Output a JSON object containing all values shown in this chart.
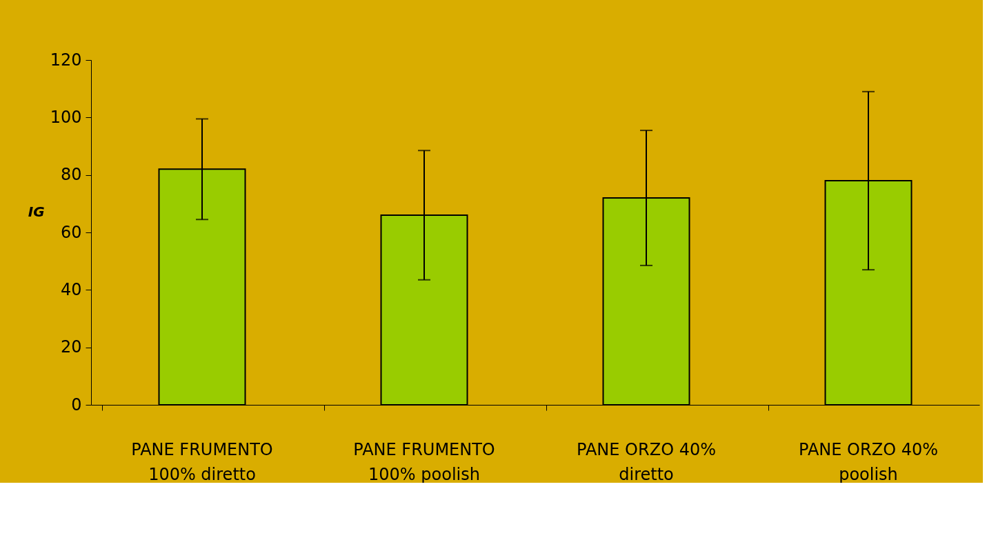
{
  "chart_data": {
    "type": "bar",
    "ylabel": "IG",
    "categories": [
      "PANE FRUMENTO\n100% diretto",
      "PANE FRUMENTO\n100% poolish",
      "PANE ORZO 40%\ndiretto",
      "PANE ORZO 40%\npoolish"
    ],
    "values": [
      82,
      66,
      72,
      78
    ],
    "errors": [
      17.5,
      22.5,
      23.5,
      31
    ],
    "color": "#99cc00",
    "ylim": [
      0,
      120
    ],
    "yticks": [
      0,
      20,
      40,
      60,
      80,
      100,
      120
    ],
    "grid": false
  }
}
